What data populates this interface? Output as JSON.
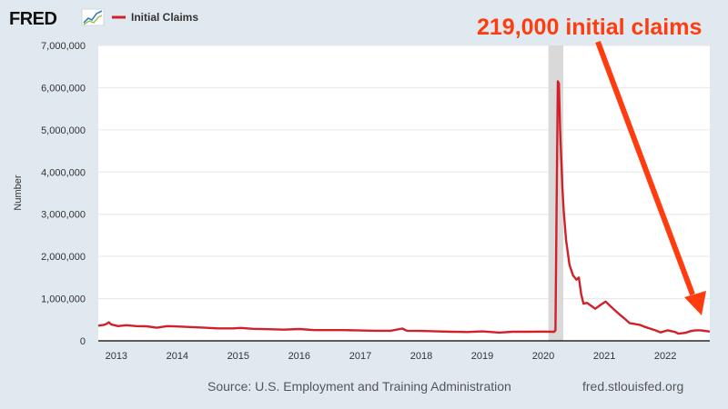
{
  "brand": {
    "logo_text": "FRED",
    "logo_icon": "fred-chart-logo-icon"
  },
  "source": "Source: U.S. Employment and Training Administration",
  "site": "fred.stlouisfed.org",
  "annotation": {
    "text": "219,000 initial claims",
    "color": "#ff3b10"
  },
  "colors": {
    "series": "#d2202a",
    "background": "#e1e9f0",
    "plot": "#ffffff",
    "recession": "#d9d9d9",
    "annotation": "#ff3b10"
  },
  "chart_data": {
    "type": "line",
    "title": "",
    "xlabel": "",
    "ylabel": "Number",
    "legend": {
      "placement": "top-left",
      "entries": [
        "Initial Claims"
      ]
    },
    "grid": true,
    "xlim": [
      "2012-09-15",
      "2022-09-24"
    ],
    "ylim": [
      0,
      7000000
    ],
    "y_ticks": [
      0,
      1000000,
      2000000,
      3000000,
      4000000,
      5000000,
      6000000,
      7000000
    ],
    "y_tick_labels": [
      "0",
      "1,000,000",
      "2,000,000",
      "3,000,000",
      "4,000,000",
      "5,000,000",
      "6,000,000",
      "7,000,000"
    ],
    "x_ticks": [
      "2013-01-01",
      "2014-01-01",
      "2015-01-01",
      "2016-01-01",
      "2017-01-01",
      "2018-01-01",
      "2019-01-01",
      "2020-01-01",
      "2021-01-01",
      "2022-01-01"
    ],
    "x_tick_labels": [
      "2013",
      "2014",
      "2015",
      "2016",
      "2017",
      "2018",
      "2019",
      "2020",
      "2021",
      "2022"
    ],
    "recession": {
      "start": "2020-02-01",
      "end": "2020-04-30"
    },
    "series": [
      {
        "name": "Initial Claims",
        "points": [
          [
            "2012-09-15",
            360000
          ],
          [
            "2012-10-20",
            380000
          ],
          [
            "2012-11-03",
            400000
          ],
          [
            "2012-11-17",
            440000
          ],
          [
            "2012-12-01",
            390000
          ],
          [
            "2013-01-12",
            350000
          ],
          [
            "2013-03-01",
            370000
          ],
          [
            "2013-05-01",
            350000
          ],
          [
            "2013-07-01",
            345000
          ],
          [
            "2013-09-01",
            310000
          ],
          [
            "2013-11-01",
            350000
          ],
          [
            "2014-01-04",
            340000
          ],
          [
            "2014-03-01",
            330000
          ],
          [
            "2014-06-01",
            315000
          ],
          [
            "2014-09-01",
            295000
          ],
          [
            "2014-12-01",
            295000
          ],
          [
            "2015-01-15",
            305000
          ],
          [
            "2015-04-01",
            285000
          ],
          [
            "2015-07-01",
            275000
          ],
          [
            "2015-10-01",
            265000
          ],
          [
            "2016-01-01",
            280000
          ],
          [
            "2016-04-01",
            255000
          ],
          [
            "2016-07-01",
            255000
          ],
          [
            "2016-10-01",
            255000
          ],
          [
            "2017-01-01",
            245000
          ],
          [
            "2017-04-01",
            240000
          ],
          [
            "2017-07-01",
            240000
          ],
          [
            "2017-09-09",
            290000
          ],
          [
            "2017-10-07",
            240000
          ],
          [
            "2018-01-01",
            235000
          ],
          [
            "2018-04-01",
            225000
          ],
          [
            "2018-07-01",
            215000
          ],
          [
            "2018-10-01",
            210000
          ],
          [
            "2019-01-01",
            225000
          ],
          [
            "2019-04-13",
            195000
          ],
          [
            "2019-07-01",
            215000
          ],
          [
            "2019-10-01",
            215000
          ],
          [
            "2020-01-01",
            220000
          ],
          [
            "2020-02-15",
            215000
          ],
          [
            "2020-03-07",
            215000
          ],
          [
            "2020-03-14",
            250000
          ],
          [
            "2020-03-21",
            3300000
          ],
          [
            "2020-03-28",
            6150000
          ],
          [
            "2020-04-04",
            6100000
          ],
          [
            "2020-04-11",
            5000000
          ],
          [
            "2020-04-18",
            4300000
          ],
          [
            "2020-04-25",
            3600000
          ],
          [
            "2020-05-02",
            3100000
          ],
          [
            "2020-05-16",
            2400000
          ],
          [
            "2020-06-06",
            1800000
          ],
          [
            "2020-06-27",
            1550000
          ],
          [
            "2020-07-18",
            1450000
          ],
          [
            "2020-08-01",
            1500000
          ],
          [
            "2020-08-15",
            1100000
          ],
          [
            "2020-08-29",
            880000
          ],
          [
            "2020-09-19",
            900000
          ],
          [
            "2020-10-17",
            820000
          ],
          [
            "2020-11-07",
            760000
          ],
          [
            "2020-12-05",
            840000
          ],
          [
            "2021-01-09",
            930000
          ],
          [
            "2021-02-06",
            820000
          ],
          [
            "2021-03-06",
            720000
          ],
          [
            "2021-04-03",
            620000
          ],
          [
            "2021-05-01",
            530000
          ],
          [
            "2021-06-01",
            420000
          ],
          [
            "2021-07-01",
            400000
          ],
          [
            "2021-08-01",
            380000
          ],
          [
            "2021-09-01",
            330000
          ],
          [
            "2021-10-01",
            290000
          ],
          [
            "2021-11-01",
            250000
          ],
          [
            "2021-12-04",
            200000
          ],
          [
            "2022-01-15",
            250000
          ],
          [
            "2022-03-01",
            210000
          ],
          [
            "2022-03-19",
            170000
          ],
          [
            "2022-05-01",
            190000
          ],
          [
            "2022-06-01",
            230000
          ],
          [
            "2022-07-01",
            250000
          ],
          [
            "2022-08-01",
            250000
          ],
          [
            "2022-09-24",
            219000
          ]
        ]
      }
    ]
  }
}
